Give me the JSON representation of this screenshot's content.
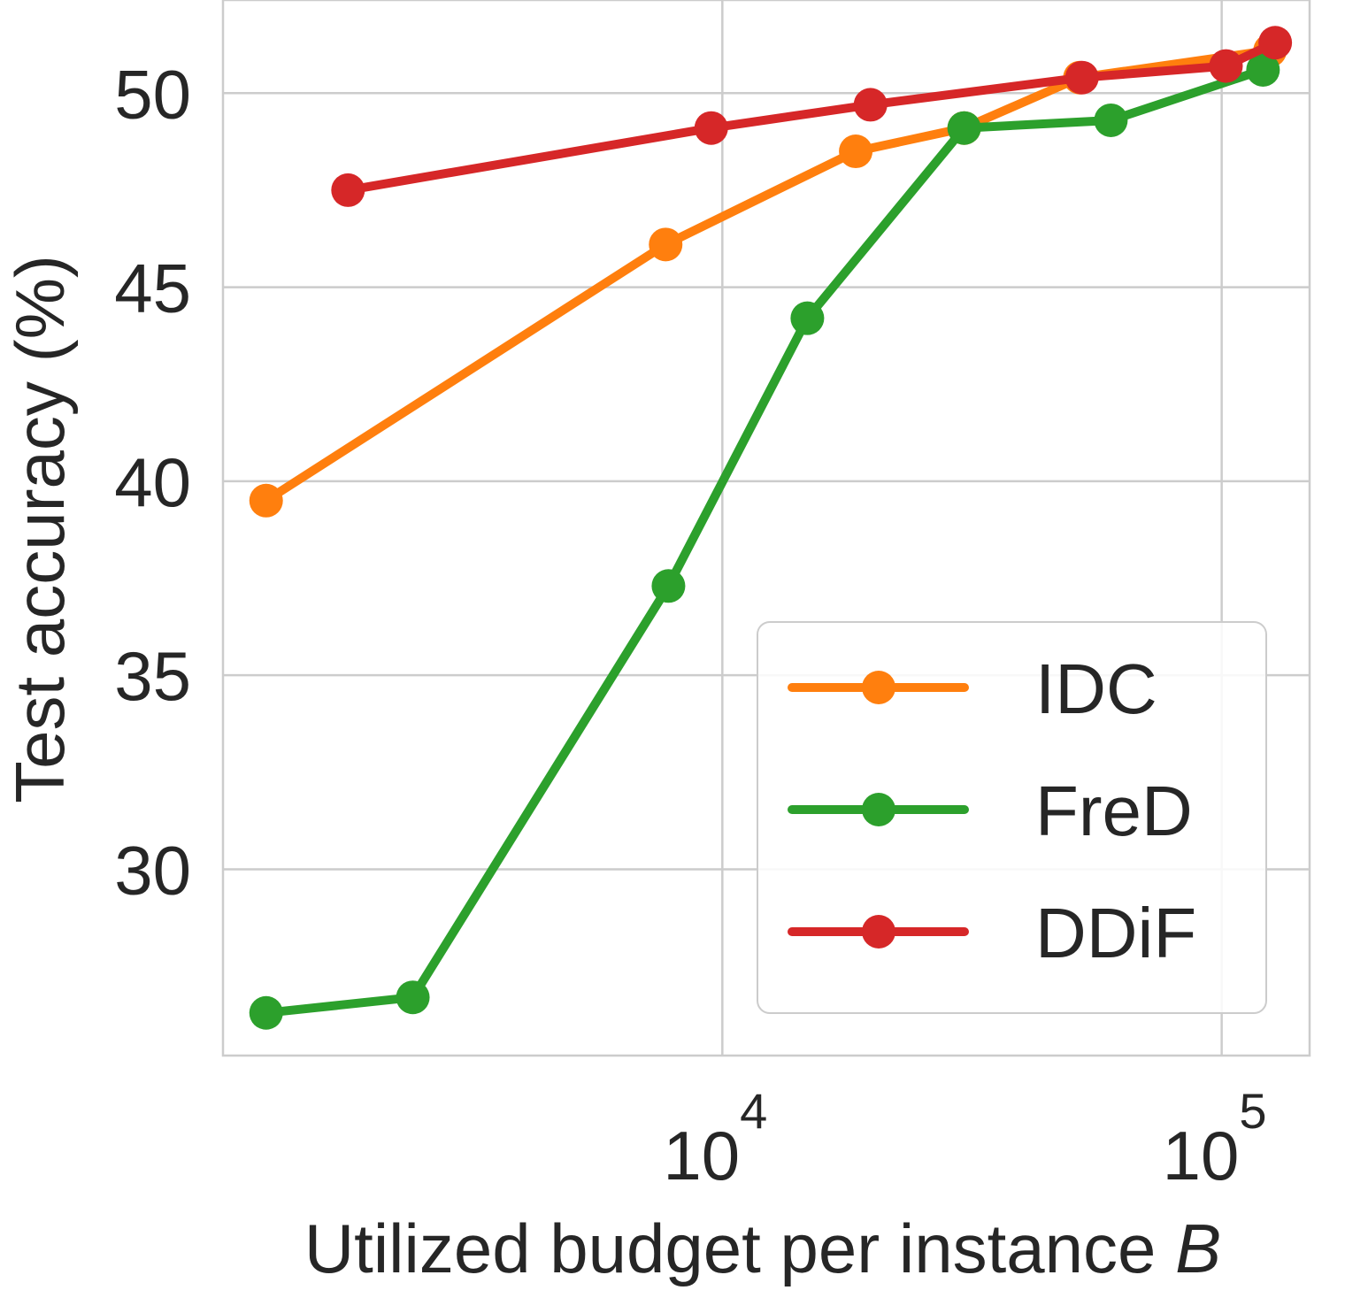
{
  "chart_data": {
    "type": "line",
    "title": "",
    "xlabel_text": "Utilized budget per instance ",
    "xlabel_var": "B",
    "ylabel": "Test accuracy (%)",
    "xscale": "log",
    "xlim": [
      1000,
      150000
    ],
    "ylim": [
      25.2,
      52.4
    ],
    "yticks": [
      30,
      35,
      40,
      45,
      50
    ],
    "xticks": [
      {
        "value": 10000,
        "base": "10",
        "exp": "4"
      },
      {
        "value": 100000,
        "base": "10",
        "exp": "5"
      }
    ],
    "grid": true,
    "legend_position": "lower-right",
    "series": [
      {
        "name": "IDC",
        "color": "#ff7f0e",
        "x": [
          1220,
          7700,
          18500,
          30500,
          52000,
          125000
        ],
        "y": [
          39.5,
          46.1,
          48.5,
          49.1,
          50.4,
          51.1
        ]
      },
      {
        "name": "FreD",
        "color": "#2ca02c",
        "x": [
          1220,
          2400,
          7800,
          14800,
          30500,
          60000,
          121000
        ],
        "y": [
          26.3,
          26.7,
          37.3,
          44.2,
          49.1,
          49.3,
          50.6
        ]
      },
      {
        "name": "DDiF",
        "color": "#d62728",
        "x": [
          1780,
          9500,
          19800,
          52500,
          102000,
          128000
        ],
        "y": [
          47.5,
          49.1,
          49.7,
          50.4,
          50.7,
          51.3
        ]
      }
    ]
  }
}
